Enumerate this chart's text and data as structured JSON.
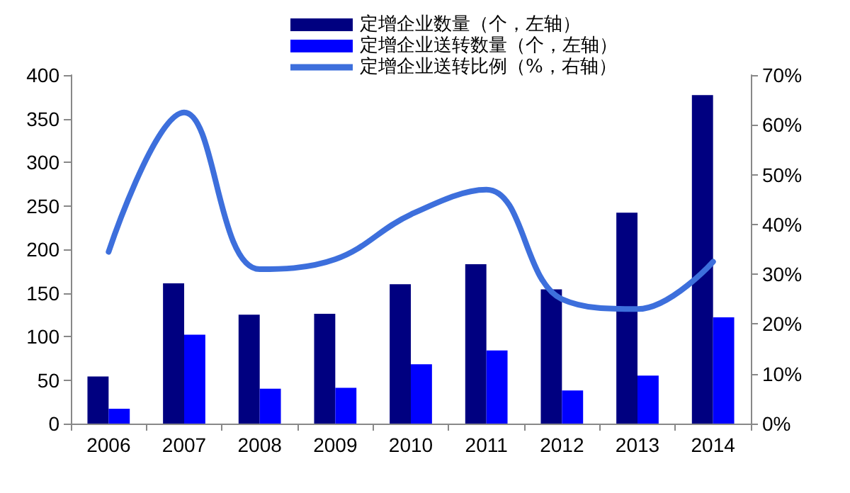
{
  "chart_data": {
    "type": "bar",
    "categories": [
      "2006",
      "2007",
      "2008",
      "2009",
      "2010",
      "2011",
      "2012",
      "2013",
      "2014"
    ],
    "series": [
      {
        "name": "定增企业数量（个，左轴）",
        "color": "#000080",
        "values": [
          54,
          161,
          125,
          126,
          160,
          183,
          154,
          242,
          377
        ]
      },
      {
        "name": "定增企业送转数量（个，左轴）",
        "color": "#0000ff",
        "values": [
          17,
          102,
          40,
          41,
          68,
          84,
          38,
          55,
          122
        ]
      },
      {
        "name": "定增企业送转比例（%，右轴）",
        "type": "line",
        "axis": "y2",
        "color": "#3d6fdc",
        "values": [
          34.5,
          62.5,
          31,
          33,
          42,
          47,
          25,
          23,
          32.5
        ]
      }
    ],
    "ylim": [
      0,
      400
    ],
    "yticks": [
      0,
      50,
      100,
      150,
      200,
      250,
      300,
      350,
      400
    ],
    "y2lim": [
      0,
      70
    ],
    "y2ticks": [
      {
        "value": 0,
        "label": "0%"
      },
      {
        "value": 10,
        "label": "10%"
      },
      {
        "value": 20,
        "label": "20%"
      },
      {
        "value": 30,
        "label": "30%"
      },
      {
        "value": 40,
        "label": "40%"
      },
      {
        "value": 50,
        "label": "50%"
      },
      {
        "value": 60,
        "label": "60%"
      },
      {
        "value": 70,
        "label": "70%"
      }
    ],
    "grid": false,
    "legend": "top",
    "marker": "none",
    "line_style": "solid"
  }
}
